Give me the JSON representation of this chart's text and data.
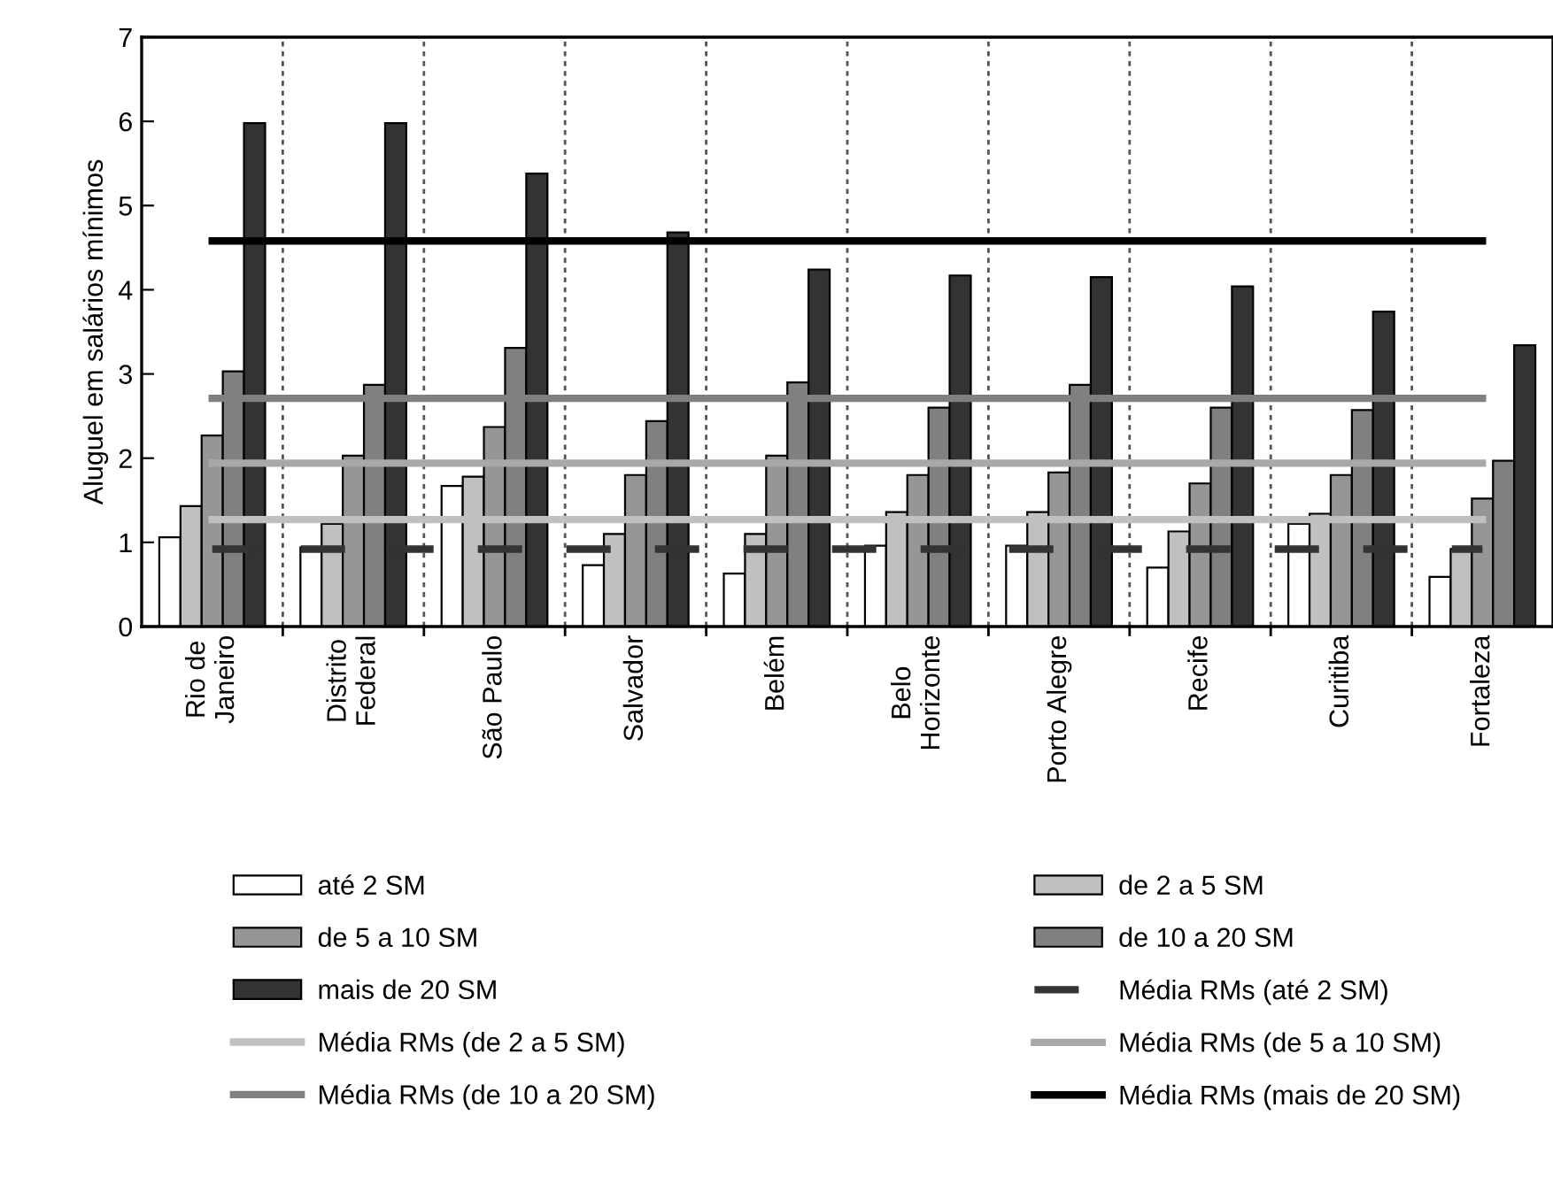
{
  "chart_data": {
    "type": "bar",
    "ylabel": "Aluguel em salários mínimos",
    "categories": [
      "Rio de\nJaneiro",
      "Distrito\nFederal",
      "São Paulo",
      "Salvador",
      "Belém",
      "Belo\nHorizonte",
      "Porto Alegre",
      "Recife",
      "Curitiba",
      "Fortaleza"
    ],
    "series": [
      {
        "name": "até 2 SM",
        "color": "#ffffff",
        "values": [
          1.06,
          0.94,
          1.67,
          0.73,
          0.63,
          0.96,
          0.96,
          0.7,
          1.22,
          0.59
        ]
      },
      {
        "name": "de 2 a 5 SM",
        "color": "#c0c0c0",
        "values": [
          1.43,
          1.22,
          1.78,
          1.1,
          1.1,
          1.36,
          1.36,
          1.13,
          1.34,
          0.92
        ]
      },
      {
        "name": "de 5 a 10 SM",
        "color": "#969696",
        "values": [
          2.27,
          2.03,
          2.37,
          1.8,
          2.03,
          1.8,
          1.83,
          1.7,
          1.8,
          1.52
        ]
      },
      {
        "name": "de 10 a 20 SM",
        "color": "#808080",
        "values": [
          3.03,
          2.87,
          3.31,
          2.44,
          2.9,
          2.6,
          2.87,
          2.6,
          2.57,
          1.97
        ]
      },
      {
        "name": "mais de 20 SM",
        "color": "#333333",
        "values": [
          5.98,
          5.98,
          5.38,
          4.68,
          4.24,
          4.17,
          4.15,
          4.04,
          3.74,
          3.34
        ]
      },
      {
        "name": "Média RMs (até 2 SM)",
        "type": "line",
        "line_style": "dashed",
        "color": "#333333",
        "values": [
          0.92,
          0.92,
          0.92,
          0.92,
          0.92,
          0.92,
          0.92,
          0.92,
          0.92,
          0.92
        ]
      },
      {
        "name": "Média RMs (de 2 a 5 SM)",
        "type": "line",
        "line_style": "solid",
        "color": "#c0c0c0",
        "values": [
          1.27,
          1.27,
          1.27,
          1.27,
          1.27,
          1.27,
          1.27,
          1.27,
          1.27,
          1.27
        ]
      },
      {
        "name": "Média RMs (de 5 a 10 SM)",
        "type": "line",
        "line_style": "solid",
        "color": "#a8a8a8",
        "values": [
          1.94,
          1.94,
          1.94,
          1.94,
          1.94,
          1.94,
          1.94,
          1.94,
          1.94,
          1.94
        ]
      },
      {
        "name": "Média RMs (de 10 a 20 SM)",
        "type": "line",
        "line_style": "solid",
        "color": "#808080",
        "values": [
          2.71,
          2.71,
          2.71,
          2.71,
          2.71,
          2.71,
          2.71,
          2.71,
          2.71,
          2.71
        ]
      },
      {
        "name": "Média RMs (mais de 20 SM)",
        "type": "line",
        "line_style": "solid",
        "color": "#000000",
        "values": [
          4.58,
          4.58,
          4.58,
          4.58,
          4.58,
          4.58,
          4.58,
          4.58,
          4.58,
          4.58
        ]
      }
    ],
    "ylim": [
      0,
      7
    ],
    "yticks": [
      0,
      1,
      2,
      3,
      4,
      5,
      6,
      7
    ],
    "grid": "x",
    "legend": "bottom",
    "marker": "none"
  }
}
